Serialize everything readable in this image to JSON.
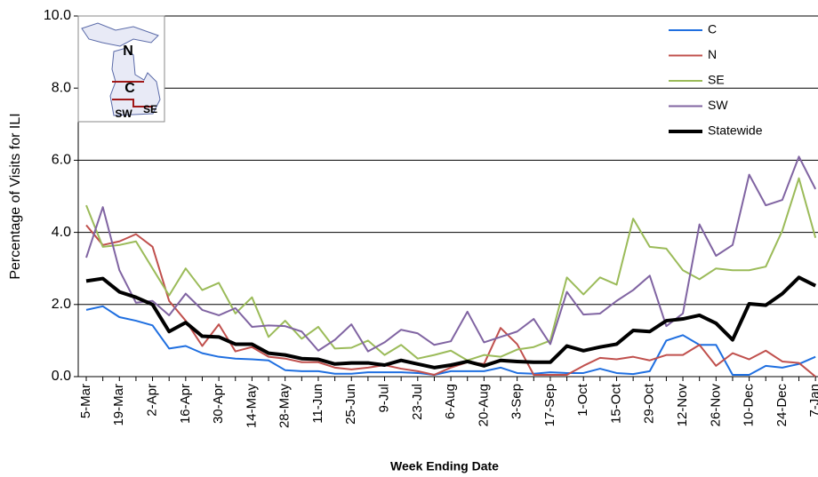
{
  "chart_data": {
    "type": "line",
    "xlabel": "Week Ending Date",
    "ylabel": "Percentage of Visits for ILI",
    "annotations": [
      "N",
      "C",
      "SW",
      "SE"
    ],
    "categories": [
      "5-Mar",
      null,
      "19-Mar",
      null,
      "2-Apr",
      null,
      "16-Apr",
      null,
      "30-Apr",
      null,
      "14-May",
      null,
      "28-May",
      null,
      "11-Jun",
      null,
      "25-Jun",
      null,
      "9-Jul",
      null,
      "23-Jul",
      null,
      "6-Aug",
      null,
      "20-Aug",
      null,
      "3-Sep",
      null,
      "17-Sep",
      null,
      "1-Oct",
      null,
      "15-Oct",
      null,
      "29-Oct",
      null,
      "12-Nov",
      null,
      "26-Nov",
      null,
      "10-Dec",
      null,
      "24-Dec",
      null,
      "7-Jan"
    ],
    "ylim": [
      0,
      10
    ],
    "yticks": [
      {
        "value": 0,
        "label": "0.0"
      },
      {
        "value": 2,
        "label": "2.0"
      },
      {
        "value": 4,
        "label": "4.0"
      },
      {
        "value": 6,
        "label": "6.0"
      },
      {
        "value": 8,
        "label": "8.0"
      },
      {
        "value": 10,
        "label": "10.0"
      }
    ],
    "grid": true,
    "legend": "top-right",
    "series": [
      {
        "name": "C",
        "color": "#1f6fe0",
        "width": 2,
        "values": [
          1.85,
          1.95,
          1.65,
          1.55,
          1.42,
          0.78,
          0.85,
          0.65,
          0.55,
          0.5,
          0.48,
          0.45,
          0.18,
          0.15,
          0.15,
          0.08,
          0.08,
          0.12,
          0.12,
          0.12,
          0.1,
          0.05,
          0.15,
          0.15,
          0.15,
          0.25,
          0.1,
          0.08,
          0.12,
          0.1,
          0.1,
          0.22,
          0.1,
          0.07,
          0.15,
          1.0,
          1.15,
          0.88,
          0.88,
          0.05,
          0.05,
          0.3,
          0.25,
          0.35,
          0.55
        ]
      },
      {
        "name": "N",
        "color": "#c0504d",
        "width": 2,
        "values": [
          4.2,
          3.65,
          3.75,
          3.95,
          3.6,
          2.1,
          1.55,
          0.85,
          1.45,
          0.7,
          0.82,
          0.55,
          0.5,
          0.4,
          0.4,
          0.25,
          0.2,
          0.25,
          0.32,
          0.22,
          0.15,
          0.05,
          0.25,
          0.4,
          0.35,
          1.35,
          0.9,
          0.05,
          0.05,
          0.05,
          0.3,
          0.52,
          0.48,
          0.55,
          0.45,
          0.6,
          0.6,
          0.88,
          0.3,
          0.65,
          0.48,
          0.72,
          0.42,
          0.38,
          0.0
        ]
      },
      {
        "name": "SE",
        "color": "#9bbb59",
        "width": 2,
        "values": [
          4.75,
          3.6,
          3.65,
          3.75,
          3.0,
          2.25,
          3.0,
          2.4,
          2.6,
          1.75,
          2.2,
          1.1,
          1.55,
          1.05,
          1.38,
          0.78,
          0.8,
          1.0,
          0.6,
          0.88,
          0.5,
          0.6,
          0.72,
          0.45,
          0.6,
          0.55,
          0.75,
          0.82,
          1.0,
          2.75,
          2.28,
          2.75,
          2.55,
          4.38,
          3.6,
          3.55,
          2.95,
          2.7,
          3.0,
          2.95,
          2.95,
          3.05,
          4.05,
          5.5,
          3.85
        ]
      },
      {
        "name": "SW",
        "color": "#8064a2",
        "width": 2,
        "values": [
          3.3,
          4.7,
          2.95,
          2.05,
          2.1,
          1.7,
          2.3,
          1.85,
          1.7,
          1.9,
          1.38,
          1.42,
          1.4,
          1.25,
          0.72,
          1.02,
          1.45,
          0.7,
          0.95,
          1.3,
          1.2,
          0.88,
          0.98,
          1.8,
          0.95,
          1.1,
          1.25,
          1.6,
          0.9,
          2.35,
          1.72,
          1.75,
          2.1,
          2.4,
          2.8,
          1.4,
          1.75,
          4.22,
          3.35,
          3.65,
          5.6,
          4.75,
          4.9,
          6.1,
          5.2
        ]
      },
      {
        "name": "Statewide",
        "color": "#000000",
        "width": 4,
        "values": [
          2.65,
          2.72,
          2.35,
          2.2,
          2.0,
          1.25,
          1.5,
          1.12,
          1.1,
          0.9,
          0.9,
          0.65,
          0.6,
          0.5,
          0.48,
          0.35,
          0.38,
          0.38,
          0.32,
          0.45,
          0.35,
          0.25,
          0.32,
          0.42,
          0.3,
          0.45,
          0.42,
          0.4,
          0.4,
          0.85,
          0.72,
          0.82,
          0.9,
          1.28,
          1.25,
          1.55,
          1.6,
          1.7,
          1.48,
          1.02,
          2.02,
          1.98,
          2.3,
          2.75,
          2.52
        ]
      }
    ]
  }
}
